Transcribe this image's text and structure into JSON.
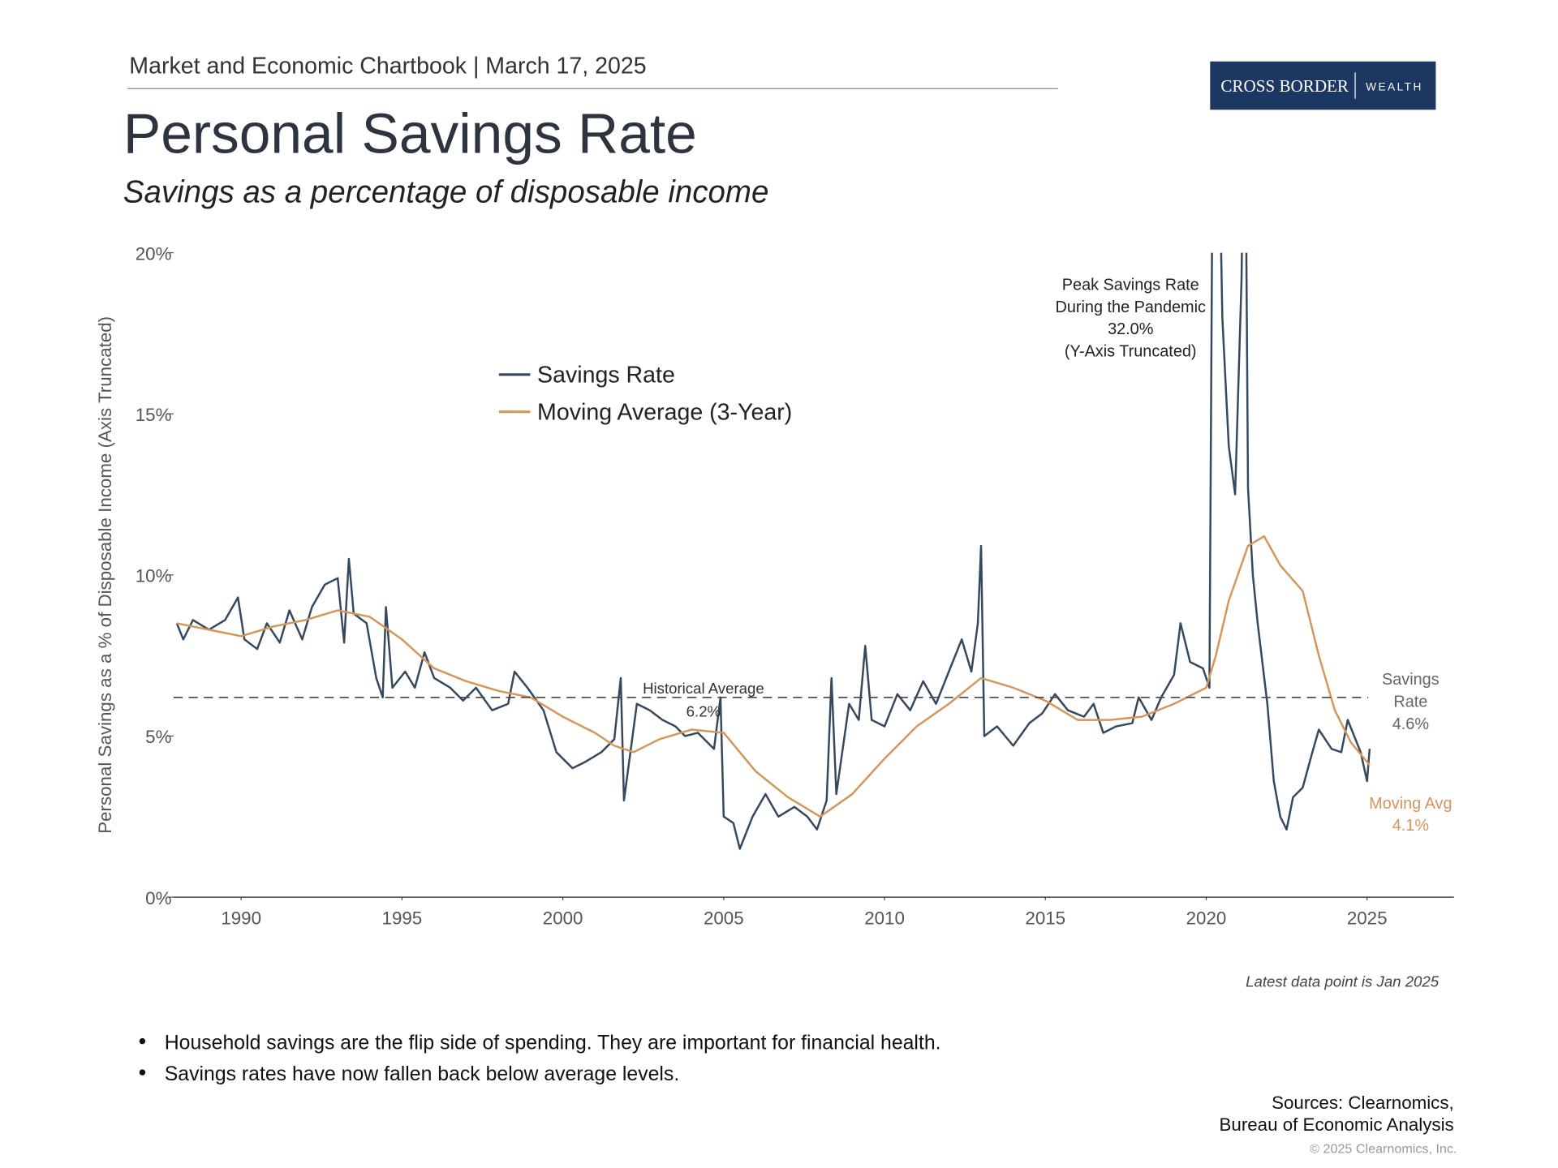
{
  "header": {
    "chartbook": "Market and Economic Chartbook | March 17, 2025",
    "logo_left": "CROSS BORDER",
    "logo_right": "WEALTH"
  },
  "chart_data": {
    "type": "line",
    "title": "Personal Savings Rate",
    "subtitle": "Savings as a percentage of disposable income",
    "y_label": "Personal Savings as a % of Disposable Income (Axis Truncated)",
    "xlim": [
      1987.9,
      2027.7
    ],
    "xticks": [
      1990,
      1995,
      2000,
      2005,
      2010,
      2015,
      2020,
      2025
    ],
    "ylim": [
      0,
      20
    ],
    "yticks": [
      {
        "value": 0,
        "label": "0%"
      },
      {
        "value": 5,
        "label": "5%"
      },
      {
        "value": 10,
        "label": "10%"
      },
      {
        "value": 15,
        "label": "15%"
      },
      {
        "value": 20,
        "label": "20%"
      }
    ],
    "legend": "upper left",
    "series": [
      {
        "name": "Savings Rate",
        "color": "#34495e",
        "end_label": [
          "Savings",
          "Rate"
        ],
        "end_value_label": "4.6%",
        "x": [
          1988.0,
          1988.2,
          1988.5,
          1989,
          1989.5,
          1989.9,
          1990.1,
          1990.5,
          1990.8,
          1991.2,
          1991.5,
          1991.9,
          1992.2,
          1992.6,
          1993,
          1993.2,
          1993.35,
          1993.5,
          1993.9,
          1994.2,
          1994.4,
          1994.5,
          1994.7,
          1995.1,
          1995.4,
          1995.7,
          1996,
          1996.5,
          1996.9,
          1997.3,
          1997.8,
          1998.3,
          1998.5,
          1998.9,
          1999.4,
          1999.8,
          2000.3,
          2000.7,
          2001.2,
          2001.6,
          2001.8,
          2001.9,
          2002.1,
          2002.3,
          2002.7,
          2003.1,
          2003.5,
          2003.8,
          2004.2,
          2004.7,
          2004.9,
          2005.0,
          2005.3,
          2005.5,
          2005.9,
          2006.3,
          2006.7,
          2007.2,
          2007.6,
          2007.9,
          2008.2,
          2008.35,
          2008.5,
          2008.9,
          2009.2,
          2009.4,
          2009.6,
          2010,
          2010.4,
          2010.8,
          2011.2,
          2011.6,
          2012,
          2012.4,
          2012.7,
          2012.9,
          2013.0,
          2013.1,
          2013.5,
          2014,
          2014.5,
          2014.9,
          2015.3,
          2015.7,
          2016.2,
          2016.5,
          2016.8,
          2017.2,
          2017.7,
          2017.9,
          2018.3,
          2018.6,
          2019.0,
          2019.2,
          2019.5,
          2019.9,
          2020.1,
          2020.25,
          2020.5,
          2020.7,
          2020.9,
          2021.1,
          2021.2,
          2021.3,
          2021.45,
          2021.6,
          2021.9,
          2022.1,
          2022.3,
          2022.5,
          2022.7,
          2023.0,
          2023.3,
          2023.5,
          2023.9,
          2024.2,
          2024.4,
          2024.8,
          2025.0,
          2025.08
        ],
        "values": [
          8.5,
          8.0,
          8.6,
          8.3,
          8.6,
          9.3,
          8.0,
          7.7,
          8.5,
          7.9,
          8.9,
          8.0,
          9.0,
          9.7,
          9.9,
          7.9,
          10.5,
          8.8,
          8.5,
          6.8,
          6.2,
          9.0,
          6.5,
          7.0,
          6.5,
          7.6,
          6.8,
          6.5,
          6.1,
          6.5,
          5.8,
          6.0,
          7.0,
          6.5,
          5.8,
          4.5,
          4.0,
          4.2,
          4.5,
          4.9,
          6.8,
          3.0,
          4.5,
          6.0,
          5.8,
          5.5,
          5.3,
          5.0,
          5.1,
          4.6,
          6.2,
          2.5,
          2.3,
          1.5,
          2.5,
          3.2,
          2.5,
          2.8,
          2.5,
          2.1,
          3.0,
          6.8,
          3.2,
          6.0,
          5.5,
          7.8,
          5.5,
          5.3,
          6.3,
          5.8,
          6.7,
          6.0,
          7.0,
          8.0,
          7.0,
          8.5,
          10.9,
          5.0,
          5.3,
          4.7,
          5.4,
          5.7,
          6.3,
          5.8,
          5.6,
          6.0,
          5.1,
          5.3,
          5.4,
          6.2,
          5.5,
          6.2,
          6.9,
          8.5,
          7.3,
          7.1,
          6.5,
          32.0,
          18.0,
          14.0,
          12.5,
          19.2,
          27.0,
          12.7,
          10.0,
          8.5,
          6.0,
          3.6,
          2.5,
          2.1,
          3.1,
          3.4,
          4.5,
          5.2,
          4.6,
          4.5,
          5.5,
          4.5,
          3.6,
          4.6
        ]
      },
      {
        "name": "Moving Average (3-Year)",
        "color": "#d4965a",
        "end_label": [
          "Moving Avg"
        ],
        "end_value_label": "4.1%",
        "x": [
          1988,
          1989,
          1990,
          1991,
          1992,
          1993,
          1994,
          1995,
          1996,
          1997,
          1998,
          1999,
          2000,
          2001,
          2001.6,
          2002.2,
          2003,
          2004,
          2005,
          2006,
          2007,
          2008,
          2009,
          2010,
          2011,
          2012,
          2013,
          2014,
          2015,
          2016,
          2017,
          2018,
          2019,
          2020,
          2020.3,
          2020.7,
          2021.3,
          2021.8,
          2022.3,
          2023,
          2023.5,
          2024,
          2024.5,
          2025.08
        ],
        "values": [
          8.5,
          8.3,
          8.1,
          8.4,
          8.6,
          8.9,
          8.7,
          8.0,
          7.1,
          6.7,
          6.4,
          6.2,
          5.6,
          5.1,
          4.7,
          4.5,
          4.9,
          5.2,
          5.1,
          3.9,
          3.1,
          2.5,
          3.2,
          4.3,
          5.3,
          6.0,
          6.8,
          6.5,
          6.1,
          5.5,
          5.5,
          5.6,
          6.0,
          6.5,
          7.5,
          9.2,
          10.9,
          11.2,
          10.3,
          9.5,
          7.5,
          5.8,
          4.8,
          4.1
        ]
      }
    ],
    "average": {
      "label": "Historical Average",
      "value": 6.2,
      "value_label": "6.2%"
    },
    "peak_annotation": [
      "Peak Savings Rate",
      "During the Pandemic",
      "32.0%",
      "(Y-Axis Truncated)"
    ],
    "note": "Latest data point is Jan 2025"
  },
  "bullets": [
    "Household savings are the flip side of spending. They are important for financial health.",
    "Savings rates have now fallen back below average levels."
  ],
  "sources": [
    "Sources: Clearnomics,",
    "Bureau of Economic Analysis"
  ],
  "copyright": "© 2025 Clearnomics, Inc."
}
